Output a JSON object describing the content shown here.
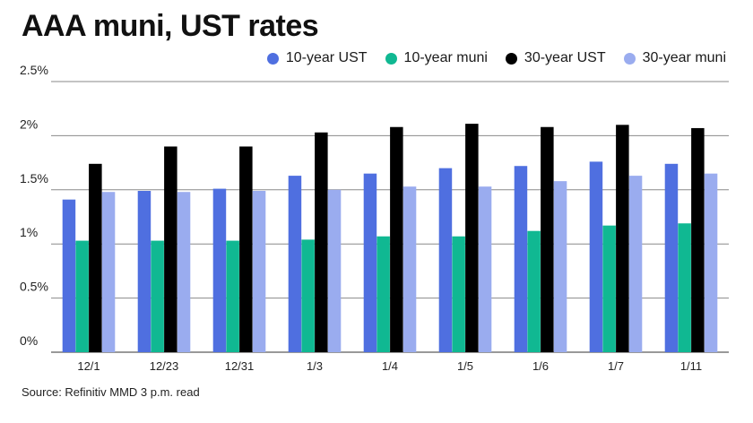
{
  "chart_data": {
    "type": "bar",
    "title": "AAA muni, UST rates",
    "xlabel": "",
    "ylabel": "",
    "ylim": [
      0,
      2.5
    ],
    "yticks": [
      {
        "value": 0,
        "label": "0%"
      },
      {
        "value": 0.5,
        "label": "0.5%"
      },
      {
        "value": 1,
        "label": "1%"
      },
      {
        "value": 1.5,
        "label": "1.5%"
      },
      {
        "value": 2,
        "label": "2%"
      },
      {
        "value": 2.5,
        "label": "2.5%"
      }
    ],
    "grid": true,
    "legend_position": "top-right",
    "categories": [
      "12/1",
      "12/23",
      "12/31",
      "1/3",
      "1/4",
      "1/5",
      "1/6",
      "1/7",
      "1/11"
    ],
    "series": [
      {
        "name": "10-year UST",
        "color": "#4f6fe0",
        "values": [
          1.41,
          1.49,
          1.51,
          1.63,
          1.65,
          1.7,
          1.72,
          1.76,
          1.74
        ]
      },
      {
        "name": "10-year muni",
        "color": "#10b892",
        "values": [
          1.03,
          1.03,
          1.03,
          1.04,
          1.07,
          1.07,
          1.12,
          1.17,
          1.19
        ]
      },
      {
        "name": "30-year UST",
        "color": "#000000",
        "values": [
          1.74,
          1.9,
          1.9,
          2.03,
          2.08,
          2.11,
          2.08,
          2.1,
          2.07
        ]
      },
      {
        "name": "30-year muni",
        "color": "#9aacef",
        "values": [
          1.48,
          1.48,
          1.49,
          1.5,
          1.53,
          1.53,
          1.58,
          1.63,
          1.65
        ]
      }
    ]
  },
  "footer": {
    "source": "Source: Refinitiv MMD 3 p.m. read"
  }
}
